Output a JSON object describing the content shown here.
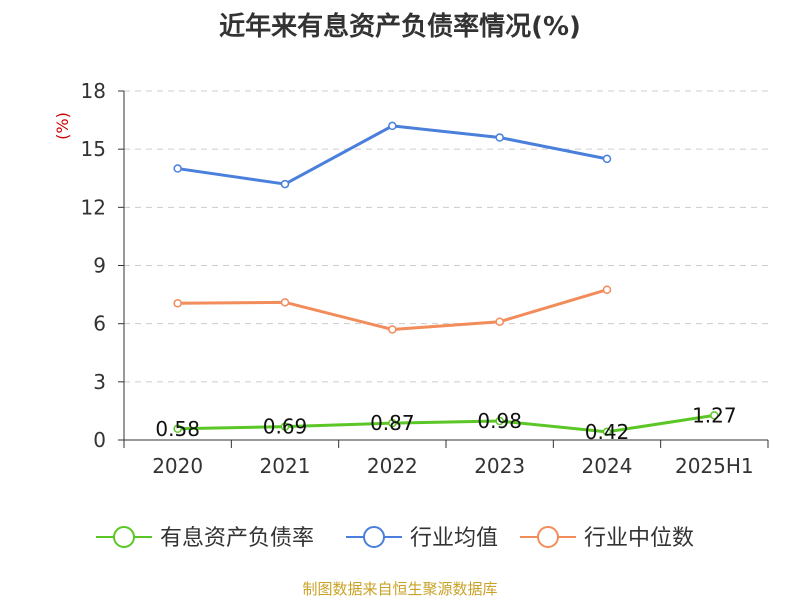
{
  "title": "近年来有息资产负债率情况(%)",
  "source": "制图数据来自恒生聚源数据库",
  "colors": {
    "grid": "#cccccc",
    "axis": "#333333",
    "unit": "#cc0000"
  },
  "chart_data": {
    "type": "line",
    "title": "近年来有息资产负债率情况(%)",
    "y_unit_label": "(%)",
    "categories": [
      "2020",
      "2021",
      "2022",
      "2023",
      "2024",
      "2025H1"
    ],
    "ylim": [
      0,
      18
    ],
    "yticks": [
      0,
      3,
      6,
      9,
      12,
      15,
      18
    ],
    "grid": true,
    "legend_position": "bottom",
    "series": [
      {
        "name": "有息资产负债率",
        "color": "#5bc726",
        "values": [
          0.58,
          0.69,
          0.87,
          0.98,
          0.42,
          1.27
        ],
        "labels": [
          "0.58",
          "0.69",
          "0.87",
          "0.98",
          "0.42",
          "1.27"
        ]
      },
      {
        "name": "行业均值",
        "color": "#4a7fdb",
        "values": [
          14.0,
          13.2,
          16.2,
          15.6,
          14.5,
          null
        ]
      },
      {
        "name": "行业中位数",
        "color": "#f28c5a",
        "values": [
          7.05,
          7.1,
          5.7,
          6.1,
          7.75,
          null
        ]
      }
    ]
  }
}
